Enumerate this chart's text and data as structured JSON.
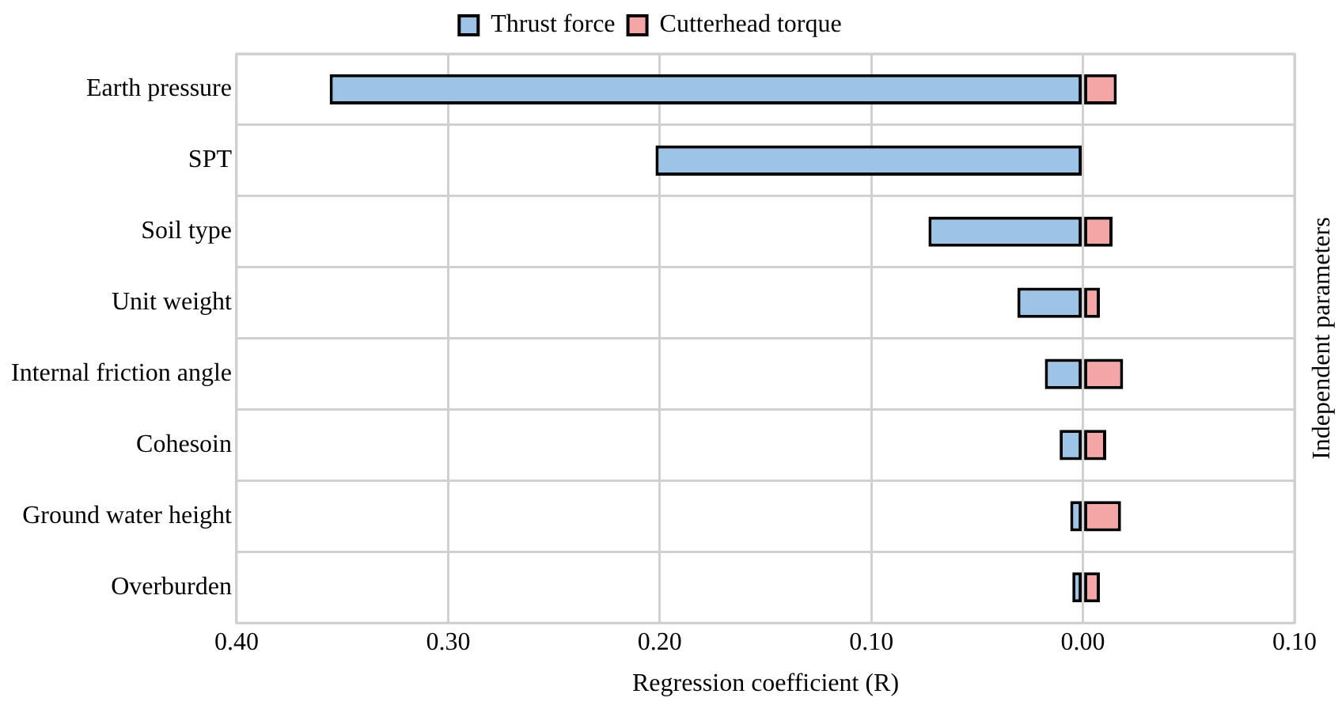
{
  "chart_data": {
    "type": "bar",
    "orientation": "horizontal",
    "stacked": true,
    "categories": [
      "Earth pressure",
      "SPT",
      "Soil type",
      "Unit weight",
      "Internal friction angle",
      "Cohesoin",
      "Ground water height",
      "Overburden"
    ],
    "series": [
      {
        "name": "Thrust force",
        "color": "#9dc3e6",
        "values": [
          -0.356,
          -0.202,
          -0.073,
          -0.031,
          -0.018,
          -0.011,
          -0.006,
          -0.005
        ]
      },
      {
        "name": "Cutterhead torque",
        "color": "#f4a6a6",
        "values": [
          0.016,
          null,
          0.014,
          0.008,
          0.019,
          0.011,
          0.018,
          0.008
        ]
      }
    ],
    "xlim": [
      -0.4,
      0.1
    ],
    "xticks": [
      {
        "value": -0.4,
        "label": "0.40"
      },
      {
        "value": -0.3,
        "label": "0.30"
      },
      {
        "value": -0.2,
        "label": "0.20"
      },
      {
        "value": -0.1,
        "label": "0.10"
      },
      {
        "value": 0,
        "label": "0.00"
      },
      {
        "value": 0.1,
        "label": "0.10"
      }
    ],
    "xlabel": "Regression coefficient (R)",
    "ylabel": "Independent parameters",
    "grid": true,
    "legend": "top"
  }
}
